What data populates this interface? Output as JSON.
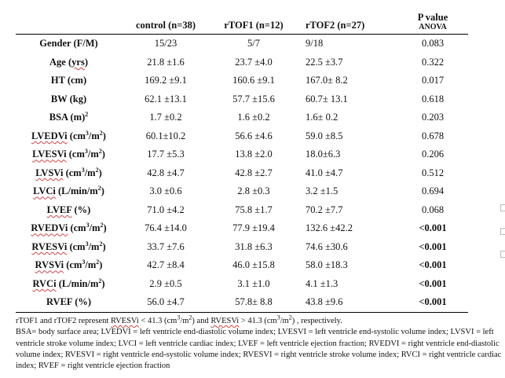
{
  "headers": {
    "control": "control (n=38)",
    "rtof1": "rTOF1 (n=12)",
    "rtof2": "rTOF2 (n=27)",
    "pvalue": "P value",
    "pvalue_sub": "ANOVA"
  },
  "rows": [
    {
      "label": "Gender (F/M)",
      "control": "15/23",
      "rtof1": "5/7",
      "rtof2": "9/18",
      "p": "0.083"
    },
    {
      "label_pre": "Age (",
      "label_wavy": "yrs",
      "label_post": ")",
      "control": "21.8 ±1.6",
      "rtof1": "23.7 ±4.0",
      "rtof2": "22.5 ±3.7",
      "p": "0.322"
    },
    {
      "label": "HT (cm)",
      "control": "169.2 ±9.1",
      "rtof1": "160.6 ±9.1",
      "rtof2": "167.0± 8.2",
      "p": "0.017"
    },
    {
      "label": "BW (kg)",
      "control": "62.1 ±13.1",
      "rtof1": "57.7 ±15.6",
      "rtof2": "60.7± 13.1",
      "p": "0.618"
    },
    {
      "label": "BSA (m",
      "sup": "2",
      "label_post": ")",
      "control": "1.7 ±0.2",
      "rtof1": "1.6 ±0.2",
      "rtof2": "1.6± 0.2",
      "p": "0.203"
    },
    {
      "label_wavy": "LVEDVi",
      "label_post": " (cm",
      "sup": "3",
      "label_post2": "/m",
      "sup2": "2",
      "label_end": ")",
      "control": "60.1±10.2",
      "rtof1": "56.6 ±4.6",
      "rtof2": "59.0 ±8.5",
      "p": "0.678"
    },
    {
      "label_wavy": "LVESVi",
      "label_post": " (cm",
      "sup": "3",
      "label_post2": "/m",
      "sup2": "2",
      "label_end": ")",
      "control": "17.7 ±5.3",
      "rtof1": "13.8 ±2.0",
      "rtof2": "18.0±6.3",
      "p": "0.206"
    },
    {
      "label_wavy": "LVSVi",
      "label_post": " (cm",
      "sup": "3",
      "label_post2": "/m",
      "sup2": "2",
      "label_end": ")",
      "control": "42.8 ±4.7",
      "rtof1": "42.8 ±2.7",
      "rtof2": "41.0 ±4.7",
      "p": "0.512"
    },
    {
      "label_wavy": "LVCi",
      "label_post": " (L/min/m",
      "sup": "2",
      "label_end": ")",
      "control": "3.0 ±0.6",
      "rtof1": "2.8 ±0.3",
      "rtof2": "3.2 ±1.5",
      "p": "0.694"
    },
    {
      "label_wavy": "LVEF",
      "label_post": " (%)",
      "control": "71.0 ±4.2",
      "rtof1": "75.8 ±1.7",
      "rtof2": "70.2 ±7.7",
      "p": "0.068"
    },
    {
      "label_wavy": "RVEDVi",
      "label_post": " (cm",
      "sup": "3",
      "label_post2": "/m",
      "sup2": "2",
      "label_end": ")",
      "control": "76.4 ±14.0",
      "rtof1": "77.9 ±19.4",
      "rtof2": "132.6 ±42.2",
      "p": "<0.001"
    },
    {
      "label_wavy": "RVESVi",
      "label_post": " (cm",
      "sup": "3",
      "label_post2": "/m",
      "sup2": "2",
      "label_end": ")",
      "control": "33.7 ±7.6",
      "rtof1": "31.8 ±6.3",
      "rtof2": "74.6 ±30.6",
      "p": "<0.001"
    },
    {
      "label_wavy": "RVSVi",
      "label_post": " (cm",
      "sup": "3",
      "label_post2": "/m",
      "sup2": "2",
      "label_end": ")",
      "control": "42.7 ±8.4",
      "rtof1": "46.0 ±15.8",
      "rtof2": "58.0 ±18.3",
      "p": "<0.001"
    },
    {
      "label_wavy": "RVCi",
      "label_post": " (L/min/m",
      "sup": "2",
      "label_end": ")",
      "control": "2.9 ±0.5",
      "rtof1": "3.1 ±1.0",
      "rtof2": "4.1 ±1.3",
      "p": "<0.001"
    },
    {
      "label": "RVEF (%)",
      "control": "56.0 ±4.7",
      "rtof1": "57.8± 8.8",
      "rtof2": "43.8 ±9.6",
      "p": "<0.001"
    }
  ],
  "footnote": {
    "line1_pre": "rTOF1 and rTOF2 represent ",
    "line1_w1": "RVESVi",
    "line1_mid": " < 41.3 (cm",
    "line1_sup1": "3",
    "line1_mid2": "/m",
    "line1_sup2": "2",
    "line1_mid3": ") and ",
    "line1_w2": "RVESVi",
    "line1_mid4": " > 41.3 (cm",
    "line1_sup3": "3",
    "line1_mid5": "/m",
    "line1_sup4": "2",
    "line1_end": ") , respectively.",
    "line2": "BSA= body surface area; LVEDVI = left ventricle end-diastolic volume index; LVESVI = left ventricle end-systolic volume index; LVSVI = left ventricle stroke volume index; LVCI = left ventricle cardiac index; LVEF = left ventricle ejection fraction; RVEDVI = right ventricle end-diastolic volume index; RVESVI = right ventricle end-systolic volume index; RVESVI = right ventricle stroke volume index; RVCI = right ventricle cardiac index; RVEF = right ventricle ejection fraction"
  }
}
